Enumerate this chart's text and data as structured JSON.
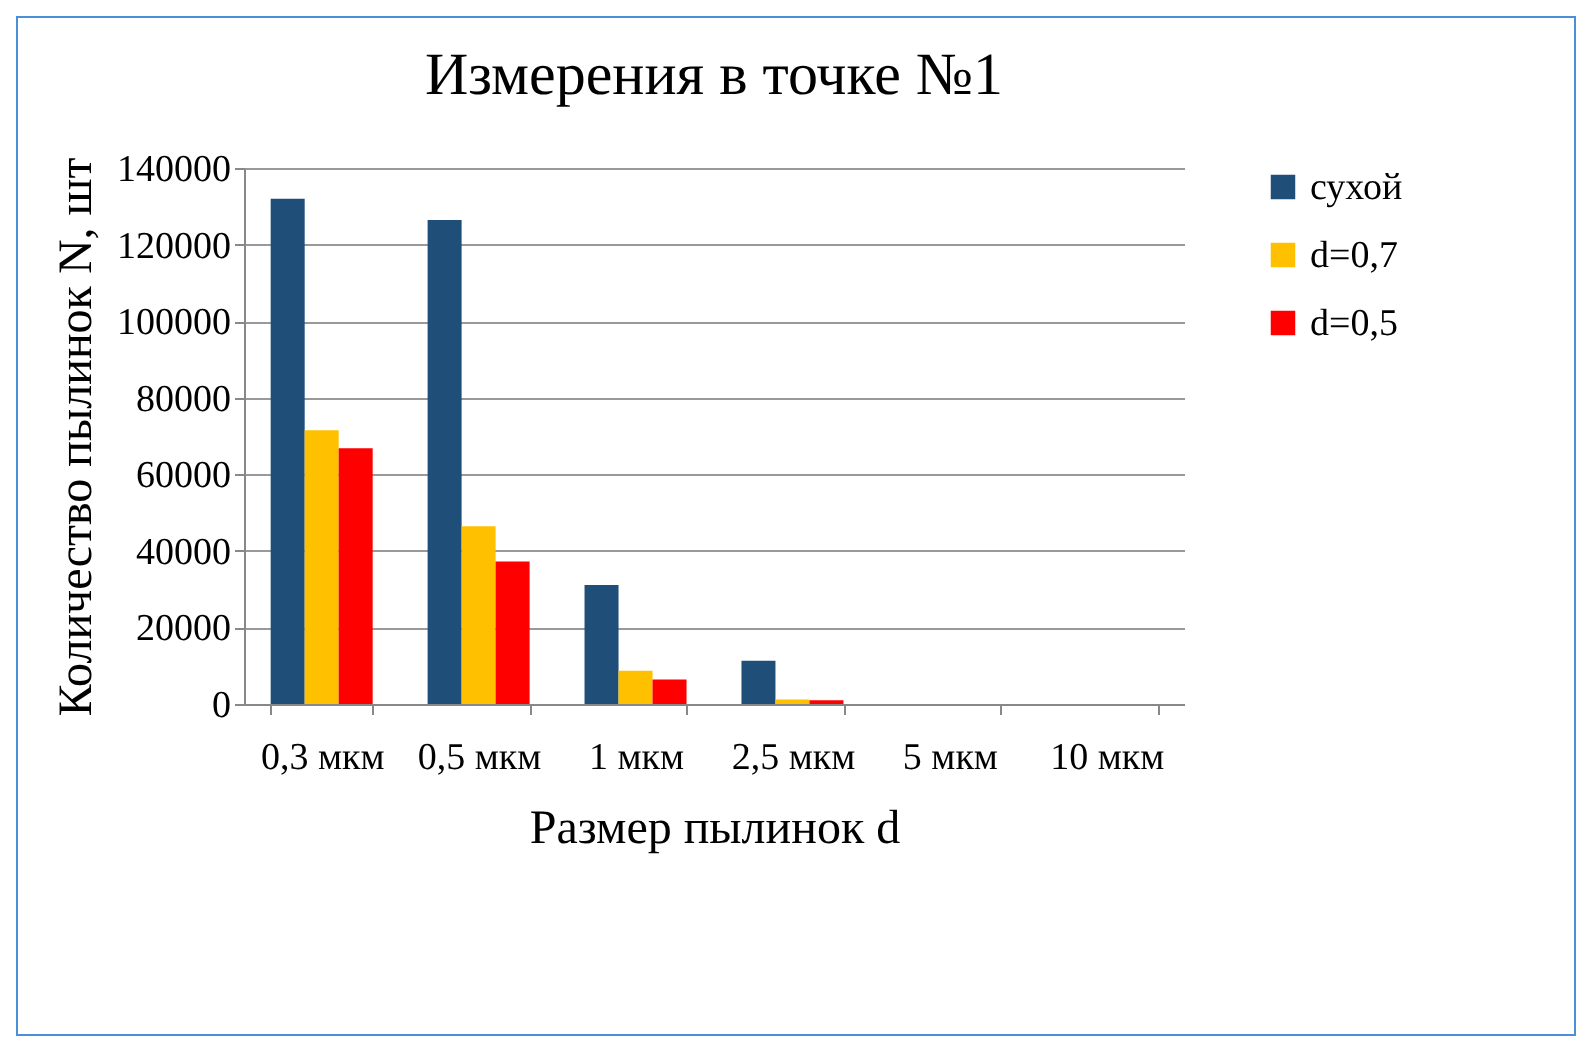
{
  "chart_data": {
    "type": "bar",
    "title": "Измерения в точке №1",
    "xlabel": "Размер пылинок d",
    "ylabel": "Количество пылинок N, шт",
    "categories": [
      "0,3 мкм",
      "0,5 мкм",
      "1 мкм",
      "2,5 мкм",
      "5 мкм",
      "10 мкм"
    ],
    "series": [
      {
        "name": "сухой",
        "color": "#1f4e79",
        "values": [
          132000,
          126400,
          31100,
          11300,
          0,
          0
        ]
      },
      {
        "name": "d=0,7",
        "color": "#ffc000",
        "values": [
          71500,
          46400,
          8700,
          1200,
          0,
          0
        ]
      },
      {
        "name": "d=0,5",
        "color": "#ff0000",
        "values": [
          66800,
          37200,
          6400,
          1000,
          0,
          0
        ]
      }
    ],
    "ylim": [
      0,
      140000
    ],
    "yticks": [
      0,
      20000,
      40000,
      60000,
      80000,
      100000,
      120000,
      140000
    ],
    "grid": "y",
    "legend": "right"
  }
}
